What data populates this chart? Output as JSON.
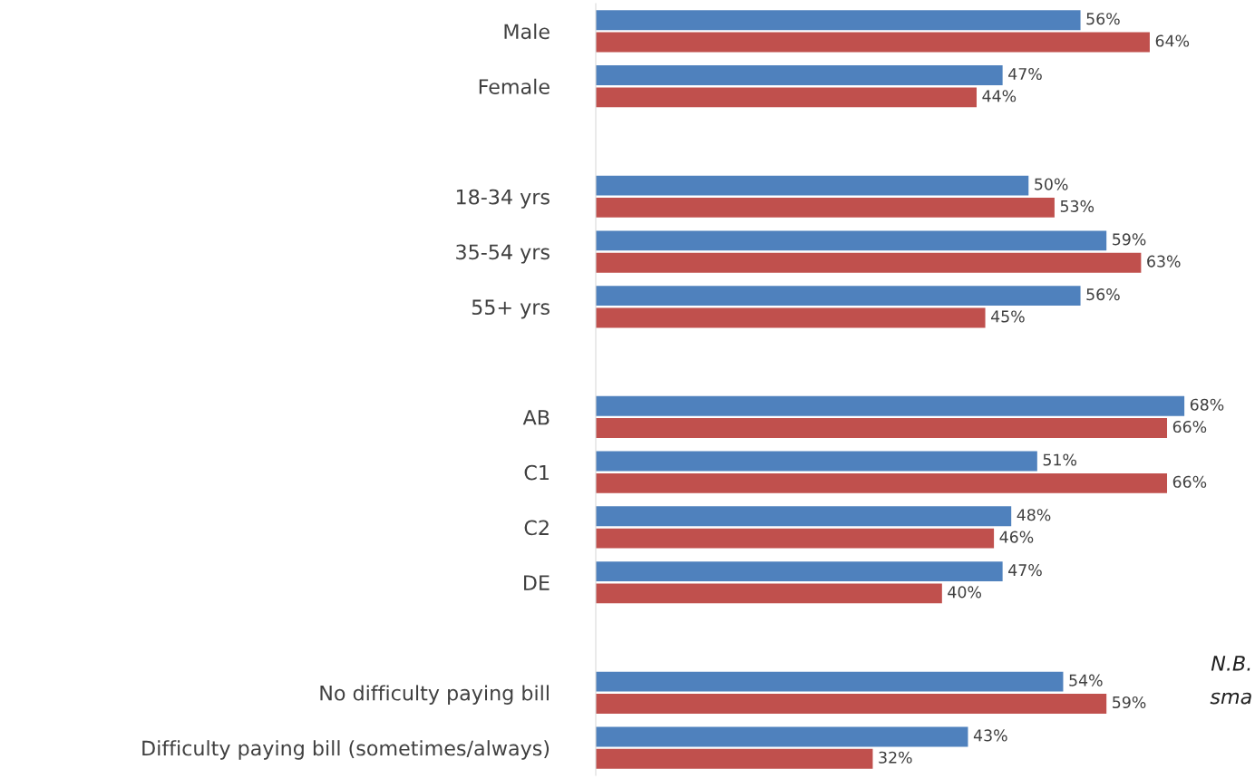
{
  "chart_data": {
    "type": "bar",
    "orientation": "horizontal",
    "categories": [
      "Male",
      "Female",
      null,
      "18-34 yrs",
      "35-54 yrs",
      "55+ yrs",
      null,
      "AB",
      "C1",
      "C2",
      "DE",
      null,
      "No difficulty paying bill",
      "Difficulty paying bill (sometimes/always)"
    ],
    "series": [
      {
        "color": "#4f81bd",
        "values": [
          56,
          47,
          null,
          50,
          59,
          56,
          null,
          68,
          51,
          48,
          47,
          null,
          54,
          43
        ],
        "value_labels": [
          "56%",
          "47%",
          null,
          "50%",
          "59%",
          "56%",
          null,
          "68%",
          "51%",
          "48%",
          "47%",
          null,
          "54%",
          "43%"
        ]
      },
      {
        "color": "#c0504d",
        "values": [
          64,
          44,
          null,
          53,
          63,
          45,
          null,
          66,
          66,
          46,
          40,
          null,
          59,
          32
        ],
        "value_labels": [
          "64%",
          "44%",
          null,
          "53%",
          "63%",
          "45%",
          null,
          "66%",
          "66%",
          "46%",
          "40%",
          null,
          "59%",
          "32%"
        ]
      }
    ],
    "tick_labels": "y",
    "grid": false,
    "legend": false,
    "annotations": [
      "N.B.\nsma"
    ]
  }
}
